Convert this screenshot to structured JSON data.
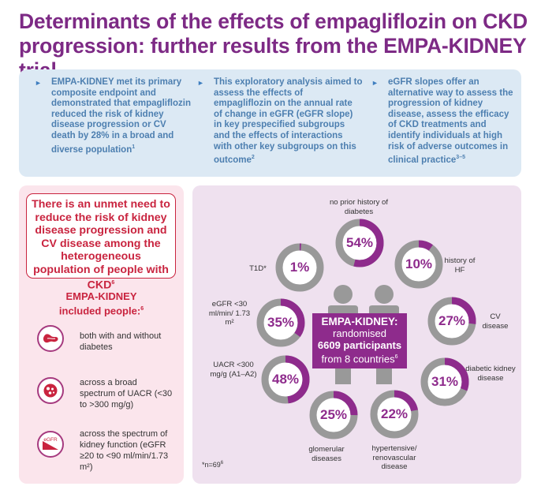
{
  "title": "Determinants of the effects of empagliflozin on CKD progression: further results from the EMPA-KIDNEY trial",
  "summary": [
    {
      "text": "EMPA-KIDNEY met its primary composite endpoint and demonstrated that empagliflozin reduced the risk of kidney disease progression or CV death by 28% in a broad and diverse population",
      "ref": "1"
    },
    {
      "text": "This exploratory analysis aimed to assess the effects of empagliflozin on the annual rate of change in eGFR (eGFR slope) in key prespecified subgroups and the effects of interactions with other key subgroups on this outcome",
      "ref": "2"
    },
    {
      "text": "eGFR slopes offer an alternative way to assess the progression of kidney disease, assess the efficacy of CKD treatments and identify individuals at high risk of adverse outcomes in clinical practice",
      "ref": "3–5"
    }
  ],
  "unmet_need": {
    "text": "There is an unmet need to reduce the risk of kidney disease progression and CV disease among the heterogeneous population of people with CKD",
    "ref": "6"
  },
  "included": {
    "label": "EMPA-KIDNEY included people:",
    "ref": "6"
  },
  "populations": [
    {
      "icon": "pancreas-icon",
      "text": "both with and without diabetes"
    },
    {
      "icon": "urine-albumin-icon",
      "text": "across a broad spectrum of UACR (<30 to >300 mg/g)"
    },
    {
      "icon": "egfr-icon",
      "icon_text": "eGFR",
      "text": "across the spectrum of kidney function (eGFR ≥20 to <90 ml/min/1.73 m²)"
    }
  ],
  "center": {
    "title": "EMPA-KIDNEY:",
    "line1": "randomised",
    "participants": "6609 participants",
    "line2": "from 8 countries",
    "ref": "6"
  },
  "subgroups": [
    {
      "label": "no prior history of diabetes",
      "value": "54%",
      "pct": 54
    },
    {
      "label": "history of HF",
      "value": "10%",
      "pct": 10
    },
    {
      "label": "CV disease",
      "value": "27%",
      "pct": 27
    },
    {
      "label": "diabetic kidney disease",
      "value": "31%",
      "pct": 31
    },
    {
      "label": "hypertensive/ renovascular disease",
      "value": "22%",
      "pct": 22
    },
    {
      "label": "glomerular diseases",
      "value": "25%",
      "pct": 25
    },
    {
      "label": "UACR <300 mg/g (A1–A2)",
      "value": "48%",
      "pct": 48
    },
    {
      "label": "eGFR <30 ml/min/ 1.73 m²",
      "value": "35%",
      "pct": 35
    },
    {
      "label": "T1D*",
      "value": "1%",
      "pct": 1
    }
  ],
  "footnote": "*n=69",
  "footnote_ref": "6",
  "colors": {
    "purple": "#8e2b8c",
    "gray": "#999999",
    "title": "#7d2a85",
    "red": "#c9243f"
  }
}
